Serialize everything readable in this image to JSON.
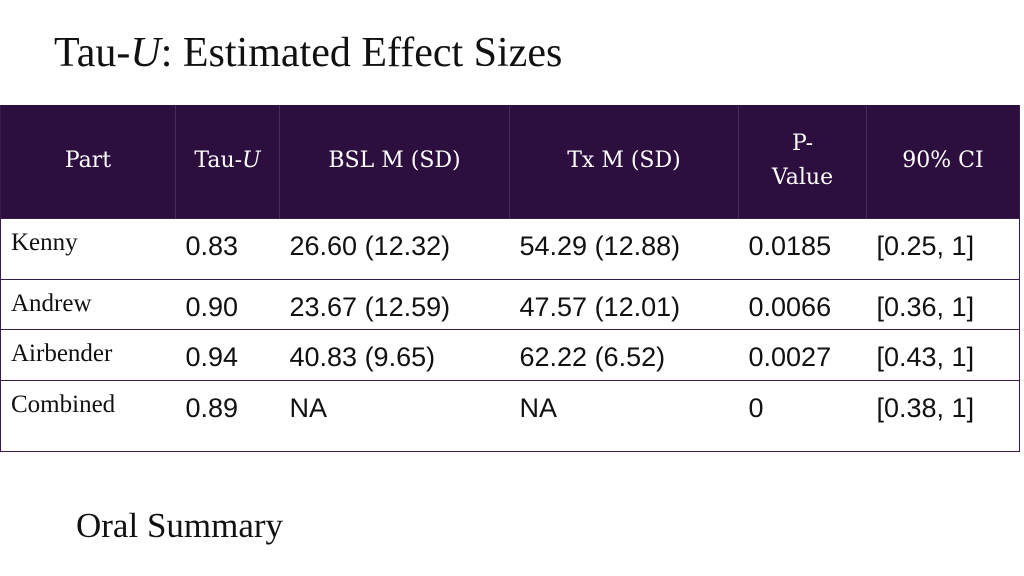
{
  "title": {
    "prefix": "Tau-",
    "italic": "U",
    "suffix": ": Estimated Effect Sizes"
  },
  "table": {
    "headers": {
      "part": "Part",
      "tau_prefix": "Tau-",
      "tau_italic": "U",
      "bsl": "BSL M (SD)",
      "tx": "Tx M (SD)",
      "p_line1": "P-",
      "p_line2": "Value",
      "ci": "90% CI"
    },
    "rows": [
      {
        "part": "Kenny",
        "tau": "0.83",
        "bsl": "26.60 (12.32)",
        "tx": "54.29 (12.88)",
        "p": "0.0185",
        "ci": "[0.25, 1]"
      },
      {
        "part": "Andrew",
        "tau": "0.90",
        "bsl": "23.67 (12.59)",
        "tx": "47.57 (12.01)",
        "p": "0.0066",
        "ci": "[0.36, 1]"
      },
      {
        "part": "Airbender",
        "tau": "0.94",
        "bsl": "40.83 (9.65)",
        "tx": "62.22 (6.52)",
        "p": "0.0027",
        "ci": "[0.43, 1]"
      },
      {
        "part": "Combined",
        "tau": "0.89",
        "bsl": "NA",
        "tx": "NA",
        "p": "0",
        "ci": "[0.38, 1]"
      }
    ]
  },
  "footer": {
    "oral_summary": "Oral Summary"
  },
  "colors": {
    "header_bg": "#2d0f3f",
    "header_text": "#ffffff",
    "border": "#3a1a4a"
  }
}
